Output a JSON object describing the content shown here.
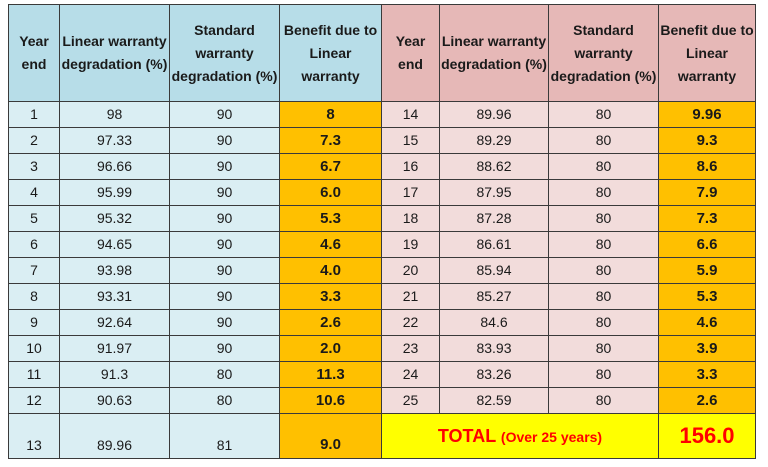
{
  "headers": {
    "year_end": "Year end",
    "linear": "Linear warranty degradation (%)",
    "standard": "Standard warranty degradation (%)",
    "benefit": "Benefit due to Linear warranty"
  },
  "left_rows": [
    {
      "year": "1",
      "linear": "98",
      "standard": "90",
      "benefit": "8"
    },
    {
      "year": "2",
      "linear": "97.33",
      "standard": "90",
      "benefit": "7.3"
    },
    {
      "year": "3",
      "linear": "96.66",
      "standard": "90",
      "benefit": "6.7"
    },
    {
      "year": "4",
      "linear": "95.99",
      "standard": "90",
      "benefit": "6.0"
    },
    {
      "year": "5",
      "linear": "95.32",
      "standard": "90",
      "benefit": "5.3"
    },
    {
      "year": "6",
      "linear": "94.65",
      "standard": "90",
      "benefit": "4.6"
    },
    {
      "year": "7",
      "linear": "93.98",
      "standard": "90",
      "benefit": "4.0"
    },
    {
      "year": "8",
      "linear": "93.31",
      "standard": "90",
      "benefit": "3.3"
    },
    {
      "year": "9",
      "linear": "92.64",
      "standard": "90",
      "benefit": "2.6"
    },
    {
      "year": "10",
      "linear": "91.97",
      "standard": "90",
      "benefit": "2.0"
    },
    {
      "year": "11",
      "linear": "91.3",
      "standard": "80",
      "benefit": "11.3"
    },
    {
      "year": "12",
      "linear": "90.63",
      "standard": "80",
      "benefit": "10.6"
    },
    {
      "year": "13",
      "linear": "89.96",
      "standard": "81",
      "benefit": "9.0"
    }
  ],
  "right_rows": [
    {
      "year": "14",
      "linear": "89.96",
      "standard": "80",
      "benefit": "9.96"
    },
    {
      "year": "15",
      "linear": "89.29",
      "standard": "80",
      "benefit": "9.3"
    },
    {
      "year": "16",
      "linear": "88.62",
      "standard": "80",
      "benefit": "8.6"
    },
    {
      "year": "17",
      "linear": "87.95",
      "standard": "80",
      "benefit": "7.9"
    },
    {
      "year": "18",
      "linear": "87.28",
      "standard": "80",
      "benefit": "7.3"
    },
    {
      "year": "19",
      "linear": "86.61",
      "standard": "80",
      "benefit": "6.6"
    },
    {
      "year": "20",
      "linear": "85.94",
      "standard": "80",
      "benefit": "5.9"
    },
    {
      "year": "21",
      "linear": "85.27",
      "standard": "80",
      "benefit": "5.3"
    },
    {
      "year": "22",
      "linear": "84.6",
      "standard": "80",
      "benefit": "4.6"
    },
    {
      "year": "23",
      "linear": "83.93",
      "standard": "80",
      "benefit": "3.9"
    },
    {
      "year": "24",
      "linear": "83.26",
      "standard": "80",
      "benefit": "3.3"
    },
    {
      "year": "25",
      "linear": "82.59",
      "standard": "80",
      "benefit": "2.6"
    }
  ],
  "total": {
    "label": "TOTAL",
    "sublabel": "(Over 25 years)",
    "value": "156.0"
  },
  "colors": {
    "header_blue": "#b7dde8",
    "cell_blue": "#daeef3",
    "header_pink": "#e6b8b7",
    "cell_pink": "#f2dcdb",
    "benefit_orange": "#ffc000",
    "total_yellow": "#ffff00",
    "total_text_red": "#ff0000"
  }
}
